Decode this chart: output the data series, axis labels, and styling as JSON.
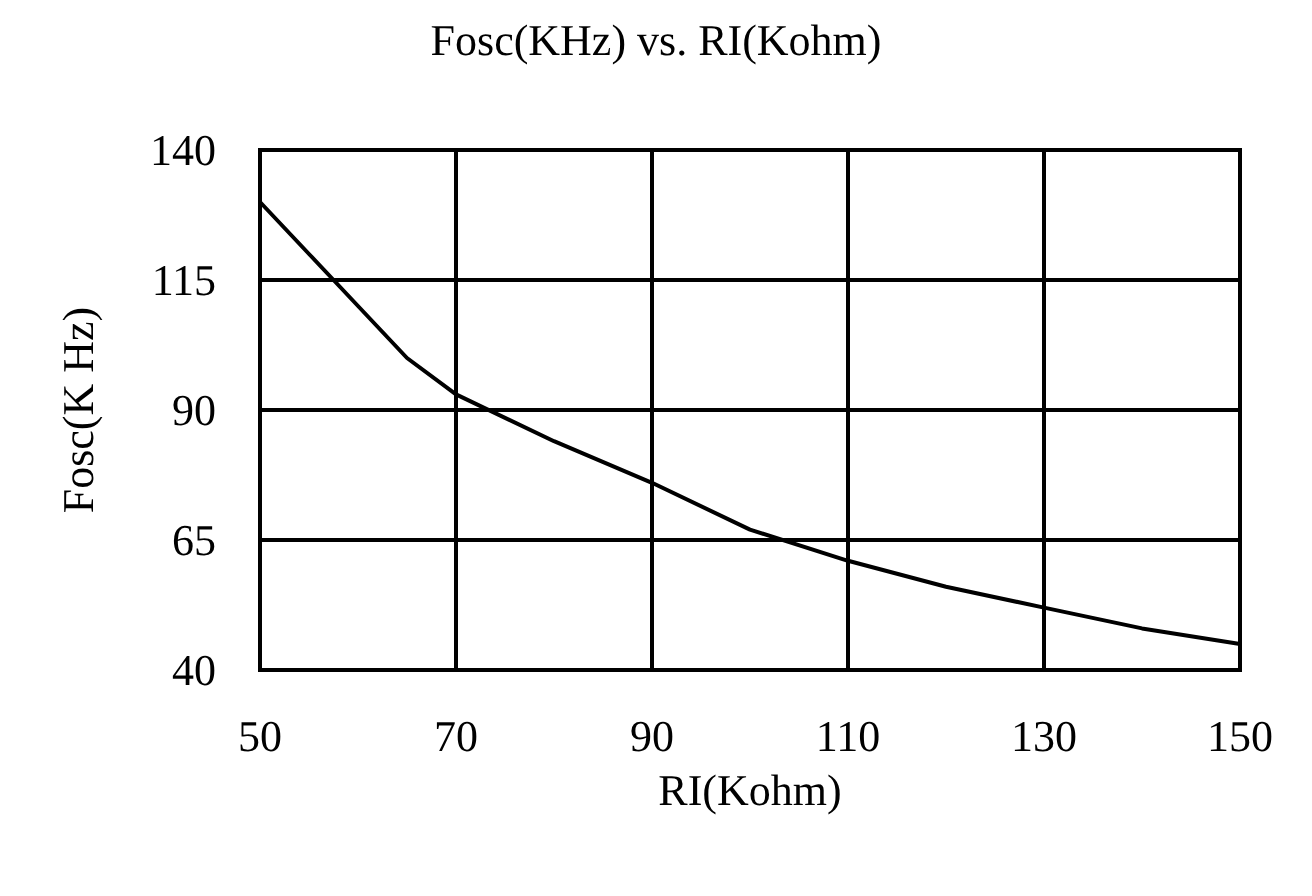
{
  "chart_data": {
    "type": "line",
    "title": "Fosc(KHz) vs. RI(Kohm)",
    "xlabel": "RI(Kohm)",
    "ylabel": "Fosc(K Hz)",
    "x": [
      50,
      55,
      60,
      65,
      70,
      80,
      90,
      100,
      110,
      120,
      130,
      140,
      150
    ],
    "series": [
      {
        "color": "#000000",
        "values": [
          130,
          120,
          110,
          100,
          93,
          84,
          76,
          67,
          61,
          56,
          52,
          48,
          45
        ]
      }
    ],
    "xlim": [
      50,
      150
    ],
    "xticks": [
      50,
      70,
      90,
      110,
      130,
      150
    ],
    "ylim": [
      40,
      140
    ],
    "yticks": [
      40,
      65,
      90,
      115,
      140
    ],
    "grid": true,
    "marker": "none",
    "line_style": "solid"
  }
}
